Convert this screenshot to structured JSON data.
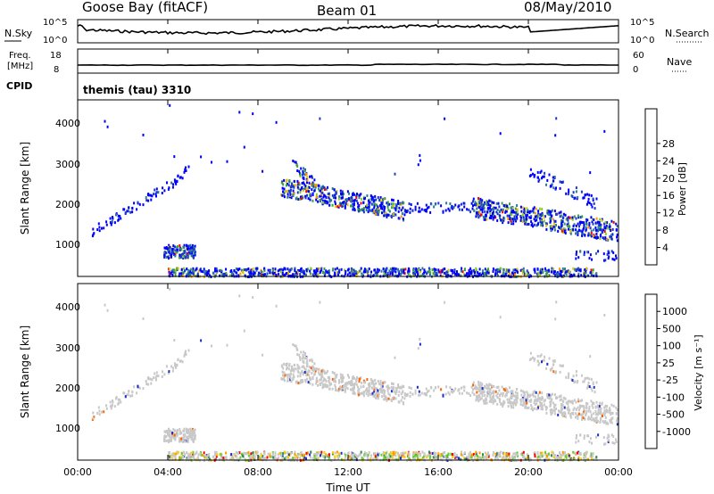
{
  "header": {
    "station": "Goose Bay (fitACF)",
    "beam": "Beam 01",
    "date": "08/May/2010"
  },
  "panels": {
    "nsky_label": "N.Sky",
    "nsky_tick_top": "10^5",
    "nsky_tick_bottom": "10^0",
    "nsearch_label": "N.Search",
    "nsearch_tick_top": "10^5",
    "nsearch_tick_bottom": "10^0",
    "freq_label_1": "Freq.",
    "freq_label_2": "[MHz]",
    "freq_tick_top": "18",
    "freq_tick_bottom": "8",
    "nave_label": "Nave",
    "nave_tick_top": "60",
    "nave_tick_bottom": "0",
    "cpid_label": "CPID",
    "cpid_value": "themis (tau) 3310"
  },
  "chart_data": [
    {
      "type": "heatmap",
      "name": "power",
      "ylabel": "Slant Range [km]",
      "xlabel": "",
      "ylim": [
        180,
        4500
      ],
      "yticks": [
        "1000",
        "2000",
        "3000",
        "4000"
      ],
      "colorbar_label": "Power [dB]",
      "colorbar_ticks": [
        "4",
        "8",
        "12",
        "16",
        "20",
        "24",
        "28"
      ],
      "colorbar_colors": [
        "#0000ff",
        "#1a3ccc",
        "#2e7a99",
        "#3fa040",
        "#8ccc22",
        "#e6c800",
        "#ff9900",
        "#ff6600",
        "#ff0000"
      ],
      "scatter_regions": [
        {
          "t": [
            0.5,
            4.0
          ],
          "r": [
            1150,
            2450
          ],
          "density": "sparse"
        },
        {
          "t": [
            3.8,
            5.2
          ],
          "r": [
            650,
            980
          ],
          "density": "dense"
        },
        {
          "t": [
            4.0,
            22.5
          ],
          "r": [
            180,
            420
          ],
          "density": "dense"
        },
        {
          "t": [
            9.0,
            14.5
          ],
          "r": [
            1600,
            2700
          ],
          "density": "dense"
        },
        {
          "t": [
            17.0,
            24.0
          ],
          "r": [
            1200,
            2400
          ],
          "density": "dense"
        }
      ]
    },
    {
      "type": "heatmap",
      "name": "velocity",
      "ylabel": "Slant Range [km]",
      "xlabel": "Time UT",
      "ylim": [
        180,
        4500
      ],
      "yticks": [
        "1000",
        "2000",
        "3000",
        "4000"
      ],
      "xticks": [
        "00:00",
        "04:00",
        "08:00",
        "12:00",
        "16:00",
        "20:00",
        "00:00"
      ],
      "colorbar_label": "Velocity [m s⁻¹]",
      "colorbar_ticks": [
        "1000",
        "500",
        "100",
        "25",
        "-25",
        "-100",
        "-500",
        "-1000"
      ],
      "colorbar_colors": [
        "#1f2fcc",
        "#2f6fa8",
        "#2e8b57",
        "#66cc33",
        "#c8c8c8",
        "#ffcc00",
        "#ff9900",
        "#ff6600",
        "#ff0000"
      ]
    },
    {
      "type": "line",
      "name": "nsky_nsearch",
      "note_series": [
        "N.Sky (solid)",
        "N.Search (dotted)"
      ]
    },
    {
      "type": "line",
      "name": "freq_nave",
      "freq_mhz_approx": 11.5
    }
  ]
}
